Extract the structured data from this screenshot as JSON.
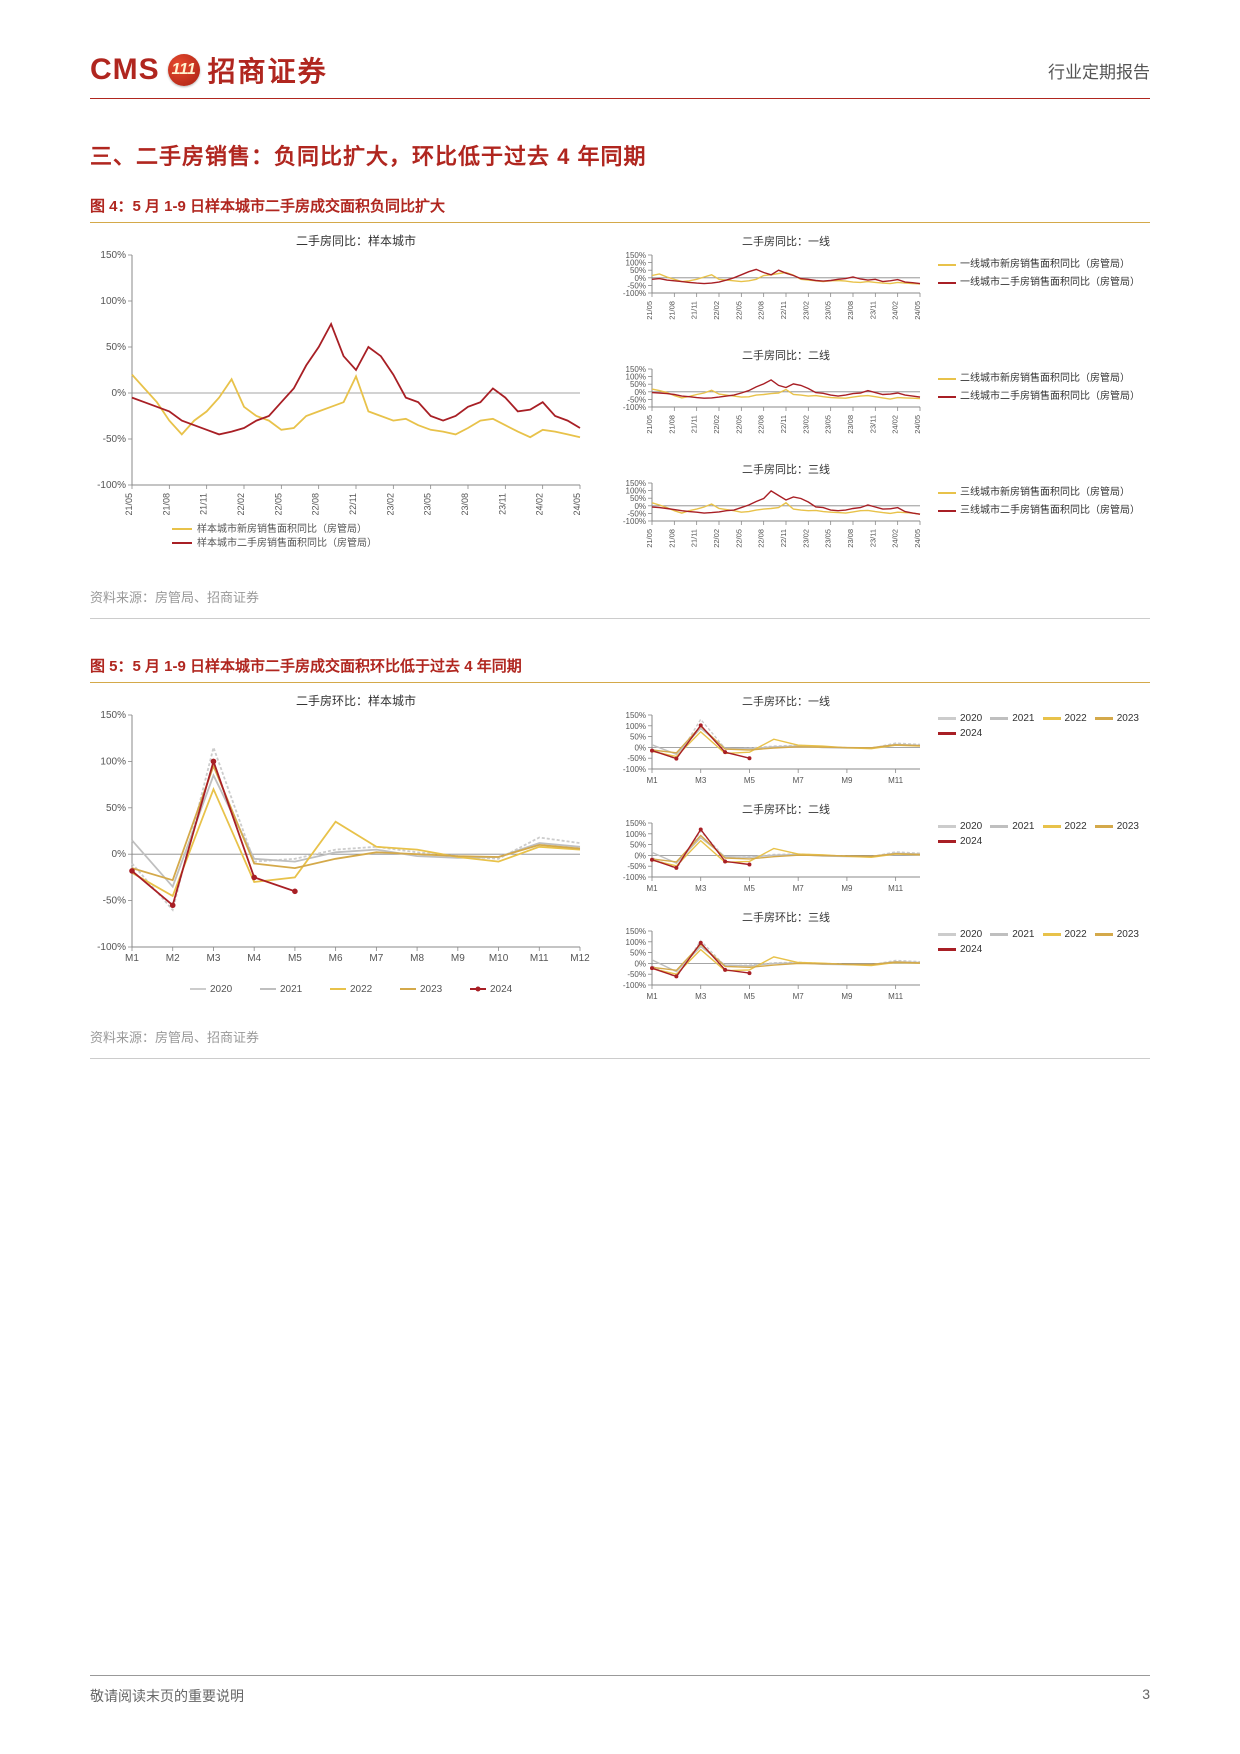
{
  "header": {
    "logo_cms": "CMS",
    "logo_badge": "111",
    "logo_cn": "招商证券",
    "right": "行业定期报告"
  },
  "section_title": "三、二手房销售：负同比扩大，环比低于过去 4 年同期",
  "fig4": {
    "title": "图 4：5 月 1-9 日样本城市二手房成交面积负同比扩大",
    "main": {
      "type": "line",
      "title": "二手房同比：样本城市",
      "ylim": [
        -100,
        150
      ],
      "ytick_step": 50,
      "x_labels": [
        "21/05",
        "21/08",
        "21/11",
        "22/02",
        "22/05",
        "22/08",
        "22/11",
        "23/02",
        "23/05",
        "23/08",
        "23/11",
        "24/02",
        "24/05"
      ],
      "series": [
        {
          "name": "样本城市新房销售面积同比（房管局）",
          "color": "#e8c24a",
          "y": [
            20,
            5,
            -10,
            -30,
            -45,
            -30,
            -20,
            -5,
            15,
            -15,
            -25,
            -30,
            -40,
            -38,
            -25,
            -20,
            -15,
            -10,
            18,
            -20,
            -25,
            -30,
            -28,
            -35,
            -40,
            -42,
            -45,
            -38,
            -30,
            -28,
            -35,
            -42,
            -48,
            -40,
            -42,
            -45,
            -48
          ]
        },
        {
          "name": "样本城市二手房销售面积同比（房管局）",
          "color": "#a81f25",
          "y": [
            -5,
            -10,
            -15,
            -20,
            -30,
            -35,
            -40,
            -45,
            -42,
            -38,
            -30,
            -25,
            -10,
            5,
            30,
            50,
            75,
            40,
            25,
            50,
            40,
            20,
            -5,
            -10,
            -25,
            -30,
            -25,
            -15,
            -10,
            5,
            -5,
            -20,
            -18,
            -10,
            -25,
            -30,
            -38
          ]
        }
      ],
      "legend_below": true
    },
    "sub": [
      {
        "title": "二手房同比：一线",
        "ylim": [
          -100,
          150
        ],
        "ytick_step": 50,
        "x_labels": [
          "21/05",
          "21/08",
          "21/11",
          "22/02",
          "22/05",
          "22/08",
          "22/11",
          "23/02",
          "23/05",
          "23/08",
          "23/11",
          "24/02",
          "24/05"
        ],
        "series": [
          {
            "name": "一线城市新房销售面积同比（房管局）",
            "color": "#e8c24a",
            "y": [
              15,
              25,
              5,
              -10,
              -25,
              -20,
              -10,
              5,
              20,
              -10,
              -15,
              -20,
              -25,
              -20,
              -10,
              15,
              20,
              28,
              35,
              18,
              -10,
              -15,
              -20,
              -25,
              -20,
              -18,
              -22,
              -28,
              -30,
              -25,
              -30,
              -35,
              -38,
              -30,
              -35,
              -38,
              -40
            ]
          },
          {
            "name": "一线城市二手房销售面积同比（房管局）",
            "color": "#a81f25",
            "y": [
              -10,
              -5,
              -15,
              -20,
              -25,
              -30,
              -35,
              -38,
              -35,
              -28,
              -15,
              0,
              20,
              40,
              55,
              35,
              20,
              50,
              30,
              15,
              -5,
              -10,
              -18,
              -22,
              -18,
              -10,
              -5,
              5,
              -8,
              -15,
              -10,
              -25,
              -20,
              -12,
              -28,
              -32,
              -38
            ]
          }
        ],
        "legend": [
          {
            "label": "一线城市新房销售面积同比（房管局）",
            "color": "#e8c24a"
          },
          {
            "label": "一线城市二手房销售面积同比（房管局）",
            "color": "#a81f25"
          }
        ]
      },
      {
        "title": "二手房同比：二线",
        "ylim": [
          -100,
          150
        ],
        "ytick_step": 50,
        "x_labels": [
          "21/05",
          "21/08",
          "21/11",
          "22/02",
          "22/05",
          "22/08",
          "22/11",
          "23/02",
          "23/05",
          "23/08",
          "23/11",
          "24/02",
          "24/05"
        ],
        "series": [
          {
            "name": "二线城市新房销售面积同比（房管局）",
            "color": "#e8c24a",
            "y": [
              18,
              8,
              -5,
              -25,
              -40,
              -30,
              -18,
              -8,
              10,
              -15,
              -22,
              -28,
              -35,
              -33,
              -22,
              -18,
              -12,
              -8,
              15,
              -18,
              -22,
              -28,
              -25,
              -32,
              -38,
              -40,
              -42,
              -35,
              -28,
              -25,
              -32,
              -40,
              -48,
              -38,
              -40,
              -42,
              -45
            ]
          },
          {
            "name": "二线城市二手房销售面积同比（房管局）",
            "color": "#a81f25",
            "y": [
              -5,
              -8,
              -12,
              -18,
              -28,
              -32,
              -38,
              -42,
              -40,
              -35,
              -28,
              -22,
              -8,
              8,
              32,
              52,
              78,
              42,
              28,
              52,
              42,
              22,
              -5,
              -10,
              -22,
              -28,
              -22,
              -12,
              -8,
              8,
              -5,
              -18,
              -15,
              -8,
              -22,
              -28,
              -35
            ]
          }
        ],
        "legend": [
          {
            "label": "二线城市新房销售面积同比（房管局）",
            "color": "#e8c24a"
          },
          {
            "label": "二线城市二手房销售面积同比（房管局）",
            "color": "#a81f25"
          }
        ]
      },
      {
        "title": "二手房同比：三线",
        "ylim": [
          -100,
          150
        ],
        "ytick_step": 50,
        "x_labels": [
          "21/05",
          "21/08",
          "21/11",
          "22/02",
          "22/05",
          "22/08",
          "22/11",
          "23/02",
          "23/05",
          "23/08",
          "23/11",
          "24/02",
          "24/05"
        ],
        "series": [
          {
            "name": "三线城市新房销售面积同比（房管局）",
            "color": "#e8c24a",
            "y": [
              20,
              5,
              -12,
              -32,
              -48,
              -32,
              -22,
              -8,
              12,
              -18,
              -25,
              -32,
              -42,
              -38,
              -28,
              -22,
              -18,
              -12,
              20,
              -22,
              -28,
              -32,
              -30,
              -38,
              -42,
              -45,
              -48,
              -40,
              -32,
              -30,
              -38,
              -45,
              -50,
              -42,
              -45,
              -48,
              -55
            ]
          },
          {
            "name": "三线城市二手房销售面积同比（房管局）",
            "color": "#a81f25",
            "y": [
              -8,
              -12,
              -18,
              -25,
              -32,
              -38,
              -42,
              -48,
              -45,
              -40,
              -32,
              -28,
              -12,
              5,
              28,
              48,
              98,
              68,
              38,
              58,
              48,
              25,
              -8,
              -12,
              -28,
              -32,
              -28,
              -18,
              -12,
              5,
              -8,
              -22,
              -20,
              -12,
              -38,
              -48,
              -55
            ]
          }
        ],
        "legend": [
          {
            "label": "三线城市新房销售面积同比（房管局）",
            "color": "#e8c24a"
          },
          {
            "label": "三线城市二手房销售面积同比（房管局）",
            "color": "#a81f25"
          }
        ]
      }
    ],
    "source": "资料来源：房管局、招商证券"
  },
  "fig5": {
    "title": "图 5：5 月 1-9 日样本城市二手房成交面积环比低于过去 4 年同期",
    "main": {
      "type": "line",
      "title": "二手房环比：样本城市",
      "ylim": [
        -100,
        150
      ],
      "ytick_step": 50,
      "x_labels": [
        "M1",
        "M2",
        "M3",
        "M4",
        "M5",
        "M6",
        "M7",
        "M8",
        "M9",
        "M10",
        "M11",
        "M12"
      ],
      "year_series": [
        {
          "name": "2020",
          "color": "#cccccc",
          "dash": "3,2",
          "y": [
            -10,
            -60,
            115,
            -8,
            -5,
            5,
            8,
            2,
            -2,
            -5,
            18,
            12
          ]
        },
        {
          "name": "2021",
          "color": "#bfbfbf",
          "dash": "",
          "y": [
            15,
            -35,
            85,
            -5,
            -8,
            2,
            5,
            -2,
            -4,
            -3,
            12,
            8
          ]
        },
        {
          "name": "2022",
          "color": "#e8c24a",
          "dash": "",
          "y": [
            -20,
            -45,
            70,
            -30,
            -25,
            35,
            8,
            5,
            -3,
            -8,
            8,
            5
          ]
        },
        {
          "name": "2023",
          "color": "#d4a94a",
          "dash": "",
          "y": [
            -15,
            -28,
            95,
            -10,
            -15,
            -5,
            2,
            0,
            -2,
            -3,
            10,
            6
          ]
        },
        {
          "name": "2024",
          "color": "#a81f25",
          "dash": "",
          "marker": true,
          "y": [
            -18,
            -55,
            100,
            -25,
            -40,
            null,
            null,
            null,
            null,
            null,
            null,
            null
          ]
        }
      ]
    },
    "sub": [
      {
        "title": "二手房环比：一线",
        "ylim": [
          -100,
          150
        ],
        "ytick_step": 50,
        "x_labels": [
          "M1",
          "M3",
          "M5",
          "M7",
          "M9",
          "M11"
        ],
        "year_series": [
          {
            "name": "2020",
            "color": "#cccccc",
            "dash": "3,2",
            "y": [
              -8,
              -55,
              130,
              -5,
              -3,
              6,
              10,
              3,
              -1,
              -4,
              20,
              14
            ]
          },
          {
            "name": "2021",
            "color": "#bfbfbf",
            "dash": "",
            "y": [
              12,
              -32,
              88,
              -3,
              -6,
              3,
              6,
              -1,
              -3,
              -2,
              14,
              10
            ]
          },
          {
            "name": "2022",
            "color": "#e8c24a",
            "dash": "",
            "y": [
              -18,
              -42,
              72,
              -28,
              -22,
              38,
              10,
              6,
              -2,
              -6,
              10,
              6
            ]
          },
          {
            "name": "2023",
            "color": "#d4a94a",
            "dash": "",
            "y": [
              -12,
              -25,
              98,
              -8,
              -12,
              -3,
              3,
              1,
              -1,
              -2,
              12,
              8
            ]
          },
          {
            "name": "2024",
            "color": "#a81f25",
            "dash": "",
            "marker": true,
            "y": [
              -15,
              -52,
              102,
              -22,
              -50,
              null,
              null,
              null,
              null,
              null,
              null,
              null
            ]
          }
        ]
      },
      {
        "title": "二手房环比：二线",
        "ylim": [
          -100,
          150
        ],
        "ytick_step": 50,
        "x_labels": [
          "M1",
          "M3",
          "M5",
          "M7",
          "M9",
          "M11"
        ],
        "year_series": [
          {
            "name": "2020",
            "color": "#cccccc",
            "dash": "3,2",
            "y": [
              -10,
              -62,
              112,
              -10,
              -6,
              4,
              7,
              1,
              -3,
              -6,
              16,
              10
            ]
          },
          {
            "name": "2021",
            "color": "#bfbfbf",
            "dash": "",
            "y": [
              14,
              -36,
              82,
              -6,
              -9,
              1,
              4,
              -3,
              -5,
              -4,
              10,
              6
            ]
          },
          {
            "name": "2022",
            "color": "#e8c24a",
            "dash": "",
            "y": [
              -22,
              -48,
              68,
              -32,
              -28,
              32,
              6,
              3,
              -4,
              -9,
              6,
              3
            ]
          },
          {
            "name": "2023",
            "color": "#d4a94a",
            "dash": "",
            "y": [
              -16,
              -30,
              92,
              -12,
              -16,
              -6,
              1,
              -1,
              -3,
              -4,
              8,
              4
            ]
          },
          {
            "name": "2024",
            "color": "#a81f25",
            "dash": "",
            "marker": true,
            "y": [
              -20,
              -58,
              120,
              -28,
              -42,
              null,
              null,
              null,
              null,
              null,
              null,
              null
            ]
          }
        ]
      },
      {
        "title": "二手房环比：三线",
        "ylim": [
          -100,
          150
        ],
        "ytick_step": 50,
        "x_labels": [
          "M1",
          "M3",
          "M5",
          "M7",
          "M9",
          "M11"
        ],
        "year_series": [
          {
            "name": "2020",
            "color": "#cccccc",
            "dash": "3,2",
            "y": [
              -12,
              -65,
              105,
              -12,
              -8,
              3,
              5,
              0,
              -4,
              -7,
              14,
              8
            ]
          },
          {
            "name": "2021",
            "color": "#bfbfbf",
            "dash": "",
            "y": [
              16,
              -38,
              78,
              -8,
              -11,
              0,
              3,
              -4,
              -6,
              -5,
              8,
              4
            ]
          },
          {
            "name": "2022",
            "color": "#e8c24a",
            "dash": "",
            "y": [
              -24,
              -50,
              64,
              -34,
              -30,
              30,
              4,
              1,
              -5,
              -10,
              4,
              1
            ]
          },
          {
            "name": "2023",
            "color": "#d4a94a",
            "dash": "",
            "y": [
              -18,
              -32,
              88,
              -14,
              -18,
              -8,
              0,
              -2,
              -4,
              -5,
              6,
              2
            ]
          },
          {
            "name": "2024",
            "color": "#a81f25",
            "dash": "",
            "marker": true,
            "y": [
              -22,
              -60,
              95,
              -30,
              -45,
              null,
              null,
              null,
              null,
              null,
              null,
              null
            ]
          }
        ]
      }
    ],
    "year_legend": [
      {
        "label": "2020",
        "color": "#cccccc"
      },
      {
        "label": "2021",
        "color": "#bfbfbf"
      },
      {
        "label": "2022",
        "color": "#e8c24a"
      },
      {
        "label": "2023",
        "color": "#d4a94a"
      },
      {
        "label": "2024",
        "color": "#a81f25"
      }
    ],
    "source": "资料来源：房管局、招商证券"
  },
  "footer": {
    "left": "敬请阅读末页的重要说明",
    "page": "3"
  },
  "style": {
    "accent": "#b0261f",
    "gold": "#d4a94a",
    "grid_color": "#d9d9d9",
    "axis_color": "#888888",
    "font_axis": 9
  }
}
